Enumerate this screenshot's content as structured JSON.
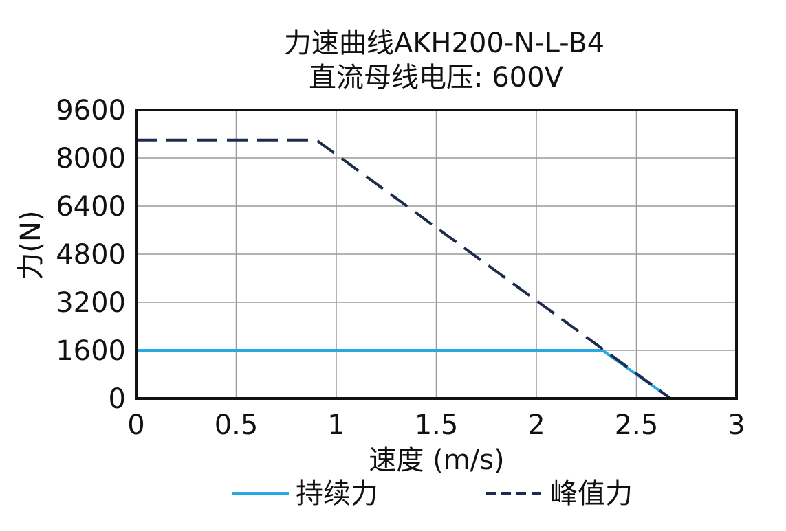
{
  "chart_data": {
    "type": "line",
    "title": "力速曲线AKH200-N-L-B4",
    "subtitle": "直流母线电压: 600V",
    "xlabel": "速度 (m/s)",
    "ylabel": "力(N)",
    "xlim": [
      0,
      3
    ],
    "ylim": [
      0,
      9600
    ],
    "x_ticks": [
      0,
      0.5,
      1,
      1.5,
      2,
      2.5,
      3
    ],
    "x_tick_labels": [
      "0",
      "0.5",
      "1",
      "1.5",
      "2",
      "2.5",
      "3"
    ],
    "y_ticks": [
      0,
      1600,
      3200,
      4800,
      6400,
      8000,
      9600
    ],
    "y_tick_labels": [
      "0",
      "1600",
      "3200",
      "4800",
      "6400",
      "8000",
      "9600"
    ],
    "grid": true,
    "legend_position": "bottom",
    "series": [
      {
        "name": "持续力",
        "style": "solid",
        "color": "#29a7df",
        "points": [
          [
            0,
            1600
          ],
          [
            2.33,
            1600
          ],
          [
            2.67,
            0
          ]
        ]
      },
      {
        "name": "峰值力",
        "style": "dashed",
        "color": "#1d2b4f",
        "points": [
          [
            0,
            8600
          ],
          [
            0.9,
            8600
          ],
          [
            2.67,
            0
          ]
        ]
      }
    ]
  }
}
